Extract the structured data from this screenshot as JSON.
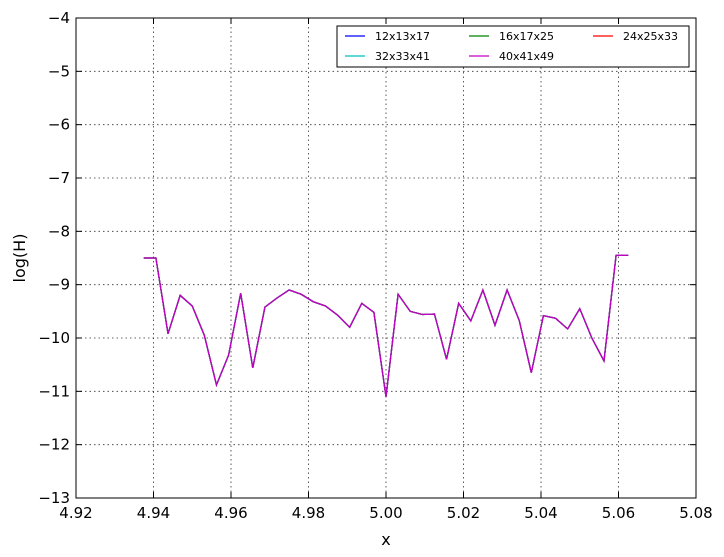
{
  "chart_data": {
    "type": "line",
    "title": "",
    "xlabel": "x",
    "ylabel": "log(H)",
    "xlim": [
      4.92,
      5.08
    ],
    "ylim": [
      -13,
      -4
    ],
    "xticks": [
      "4.92",
      "4.94",
      "4.96",
      "4.98",
      "5.00",
      "5.02",
      "5.04",
      "5.06",
      "5.08"
    ],
    "yticks": [
      "−4",
      "−5",
      "−6",
      "−7",
      "−8",
      "−9",
      "−10",
      "−11",
      "−12",
      "−13"
    ],
    "grid": true,
    "legend_position": "top-right",
    "legend_columns": 3,
    "series": [
      {
        "name": "12x13x17",
        "color": "#0000ff",
        "x": [
          4.9375,
          4.94062,
          4.94375,
          4.94688,
          4.95,
          4.95312,
          4.95625,
          4.95938,
          4.9625,
          4.96562,
          4.96875,
          4.97188,
          4.975,
          4.97812,
          4.98125,
          4.98438,
          4.9875,
          4.99062,
          4.99375,
          4.99688,
          5.0,
          5.00312,
          5.00625,
          5.00938,
          5.0125,
          5.01562,
          5.01875,
          5.02188,
          5.025,
          5.02812,
          5.03125,
          5.03438,
          5.0375,
          5.04062,
          5.04375,
          5.04688,
          5.05,
          5.05312,
          5.05625,
          5.05938,
          5.0625
        ],
        "values": [
          -8.5,
          -8.5,
          -9.92,
          -9.2,
          -9.4,
          -9.95,
          -10.88,
          -10.32,
          -9.16,
          -10.56,
          -9.42,
          -9.25,
          -9.1,
          -9.18,
          -9.32,
          -9.4,
          -9.57,
          -9.8,
          -9.35,
          -9.52,
          -11.1,
          -9.18,
          -9.5,
          -9.56,
          -9.55,
          -10.4,
          -9.35,
          -9.68,
          -9.1,
          -9.76,
          -9.1,
          -9.67,
          -10.65,
          -9.58,
          -9.63,
          -9.83,
          -9.45,
          -10.0,
          -10.43,
          -8.45,
          -8.45
        ]
      },
      {
        "name": "16x17x25",
        "color": "#008000",
        "x": [
          4.9375,
          4.94062,
          4.94375,
          4.94688,
          4.95,
          4.95312,
          4.95625,
          4.95938,
          4.9625,
          4.96562,
          4.96875,
          4.97188,
          4.975,
          4.97812,
          4.98125,
          4.98438,
          4.9875,
          4.99062,
          4.99375,
          4.99688,
          5.0,
          5.00312,
          5.00625,
          5.00938,
          5.0125,
          5.01562,
          5.01875,
          5.02188,
          5.025,
          5.02812,
          5.03125,
          5.03438,
          5.0375,
          5.04062,
          5.04375,
          5.04688,
          5.05,
          5.05312,
          5.05625,
          5.05938,
          5.0625
        ],
        "values": [
          -8.5,
          -8.5,
          -9.92,
          -9.2,
          -9.4,
          -9.95,
          -10.88,
          -10.32,
          -9.16,
          -10.56,
          -9.42,
          -9.25,
          -9.1,
          -9.18,
          -9.32,
          -9.4,
          -9.57,
          -9.8,
          -9.35,
          -9.52,
          -11.1,
          -9.18,
          -9.5,
          -9.56,
          -9.55,
          -10.4,
          -9.35,
          -9.68,
          -9.1,
          -9.76,
          -9.1,
          -9.67,
          -10.65,
          -9.58,
          -9.63,
          -9.83,
          -9.45,
          -10.0,
          -10.43,
          -8.45,
          -8.45
        ]
      },
      {
        "name": "24x25x33",
        "color": "#ff0000",
        "x": [
          4.9375,
          4.94062,
          4.94375,
          4.94688,
          4.95,
          4.95312,
          4.95625,
          4.95938,
          4.9625,
          4.96562,
          4.96875,
          4.97188,
          4.975,
          4.97812,
          4.98125,
          4.98438,
          4.9875,
          4.99062,
          4.99375,
          4.99688,
          5.0,
          5.00312,
          5.00625,
          5.00938,
          5.0125,
          5.01562,
          5.01875,
          5.02188,
          5.025,
          5.02812,
          5.03125,
          5.03438,
          5.0375,
          5.04062,
          5.04375,
          5.04688,
          5.05,
          5.05312,
          5.05625,
          5.05938,
          5.0625
        ],
        "values": [
          -8.5,
          -8.5,
          -9.92,
          -9.2,
          -9.4,
          -9.95,
          -10.88,
          -10.32,
          -9.16,
          -10.56,
          -9.42,
          -9.25,
          -9.1,
          -9.18,
          -9.32,
          -9.4,
          -9.57,
          -9.8,
          -9.35,
          -9.52,
          -11.1,
          -9.18,
          -9.5,
          -9.56,
          -9.55,
          -10.4,
          -9.35,
          -9.68,
          -9.1,
          -9.76,
          -9.1,
          -9.67,
          -10.65,
          -9.58,
          -9.63,
          -9.83,
          -9.45,
          -10.0,
          -10.43,
          -8.45,
          -8.45
        ]
      },
      {
        "name": "32x33x41",
        "color": "#00bfbf",
        "x": [
          4.9375,
          4.94062,
          4.94375,
          4.94688,
          4.95,
          4.95312,
          4.95625,
          4.95938,
          4.9625,
          4.96562,
          4.96875,
          4.97188,
          4.975,
          4.97812,
          4.98125,
          4.98438,
          4.9875,
          4.99062,
          4.99375,
          4.99688,
          5.0,
          5.00312,
          5.00625,
          5.00938,
          5.0125,
          5.01562,
          5.01875,
          5.02188,
          5.025,
          5.02812,
          5.03125,
          5.03438,
          5.0375,
          5.04062,
          5.04375,
          5.04688,
          5.05,
          5.05312,
          5.05625,
          5.05938,
          5.0625
        ],
        "values": [
          -8.5,
          -8.5,
          -9.92,
          -9.2,
          -9.4,
          -9.95,
          -10.88,
          -10.32,
          -9.16,
          -10.56,
          -9.42,
          -9.25,
          -9.1,
          -9.18,
          -9.32,
          -9.4,
          -9.57,
          -9.8,
          -9.35,
          -9.52,
          -11.1,
          -9.18,
          -9.5,
          -9.56,
          -9.55,
          -10.4,
          -9.35,
          -9.68,
          -9.1,
          -9.76,
          -9.1,
          -9.67,
          -10.65,
          -9.58,
          -9.63,
          -9.83,
          -9.45,
          -10.0,
          -10.43,
          -8.45,
          -8.45
        ]
      },
      {
        "name": "40x41x49",
        "color": "#bf00bf",
        "x": [
          4.9375,
          4.94062,
          4.94375,
          4.94688,
          4.95,
          4.95312,
          4.95625,
          4.95938,
          4.9625,
          4.96562,
          4.96875,
          4.97188,
          4.975,
          4.97812,
          4.98125,
          4.98438,
          4.9875,
          4.99062,
          4.99375,
          4.99688,
          5.0,
          5.00312,
          5.00625,
          5.00938,
          5.0125,
          5.01562,
          5.01875,
          5.02188,
          5.025,
          5.02812,
          5.03125,
          5.03438,
          5.0375,
          5.04062,
          5.04375,
          5.04688,
          5.05,
          5.05312,
          5.05625,
          5.05938,
          5.0625
        ],
        "values": [
          -8.5,
          -8.5,
          -9.92,
          -9.2,
          -9.4,
          -9.95,
          -10.88,
          -10.32,
          -9.16,
          -10.56,
          -9.42,
          -9.25,
          -9.1,
          -9.18,
          -9.32,
          -9.4,
          -9.57,
          -9.8,
          -9.35,
          -9.52,
          -11.1,
          -9.18,
          -9.5,
          -9.56,
          -9.55,
          -10.4,
          -9.35,
          -9.68,
          -9.1,
          -9.76,
          -9.1,
          -9.67,
          -10.65,
          -9.58,
          -9.63,
          -9.83,
          -9.45,
          -10.0,
          -10.43,
          -8.45,
          -8.45
        ]
      }
    ]
  }
}
